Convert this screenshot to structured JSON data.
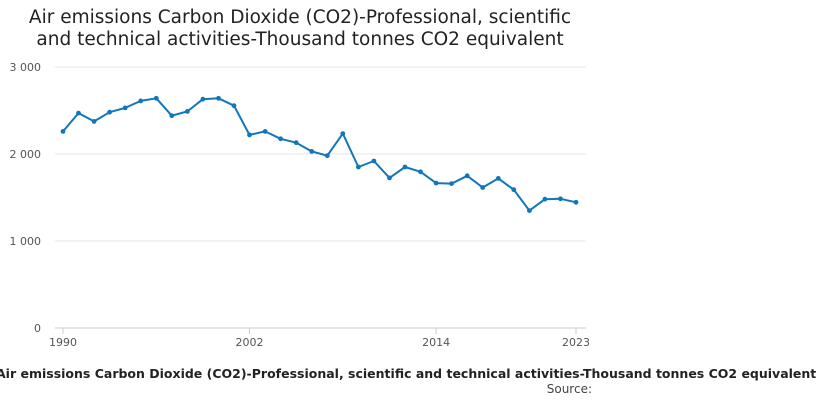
{
  "chart_data": {
    "type": "line",
    "title_lines": [
      "Air emissions Carbon Dioxide (CO2)-Professional, scientific",
      "and technical activities-Thousand tonnes CO2 equivalent"
    ],
    "xlabel": "",
    "ylabel": "",
    "x_tick_labels": [
      "1990",
      "2002",
      "2014",
      "2023"
    ],
    "y_tick_labels": [
      "0",
      "1 000",
      "2 000",
      "3 000"
    ],
    "y_ticks": [
      0,
      1000,
      2000,
      3000
    ],
    "ylim": [
      0,
      3000
    ],
    "xlim": [
      1990,
      2023
    ],
    "grid": true,
    "series": [
      {
        "name": "Air emissions Carbon Dioxide (CO2)-Professional, scientific and technical activities-Thousand tonnes CO2 equivalent",
        "x": [
          1990,
          1991,
          1992,
          1993,
          1994,
          1995,
          1996,
          1997,
          1998,
          1999,
          2000,
          2001,
          2002,
          2003,
          2004,
          2005,
          2006,
          2007,
          2008,
          2009,
          2010,
          2011,
          2012,
          2013,
          2014,
          2015,
          2016,
          2017,
          2018,
          2019,
          2020,
          2021,
          2022,
          2023
        ],
        "values": [
          2260,
          2470,
          2375,
          2480,
          2530,
          2610,
          2640,
          2440,
          2490,
          2630,
          2640,
          2555,
          2220,
          2260,
          2175,
          2130,
          2030,
          1980,
          2235,
          1850,
          1920,
          1725,
          1850,
          1795,
          1665,
          1660,
          1750,
          1615,
          1720,
          1590,
          1350,
          1480,
          1485,
          1445
        ]
      }
    ],
    "colors": {
      "line": "#1177bb",
      "grid": "#e6e6e6",
      "axis": "#cccccc"
    },
    "source_label": "Source:"
  }
}
